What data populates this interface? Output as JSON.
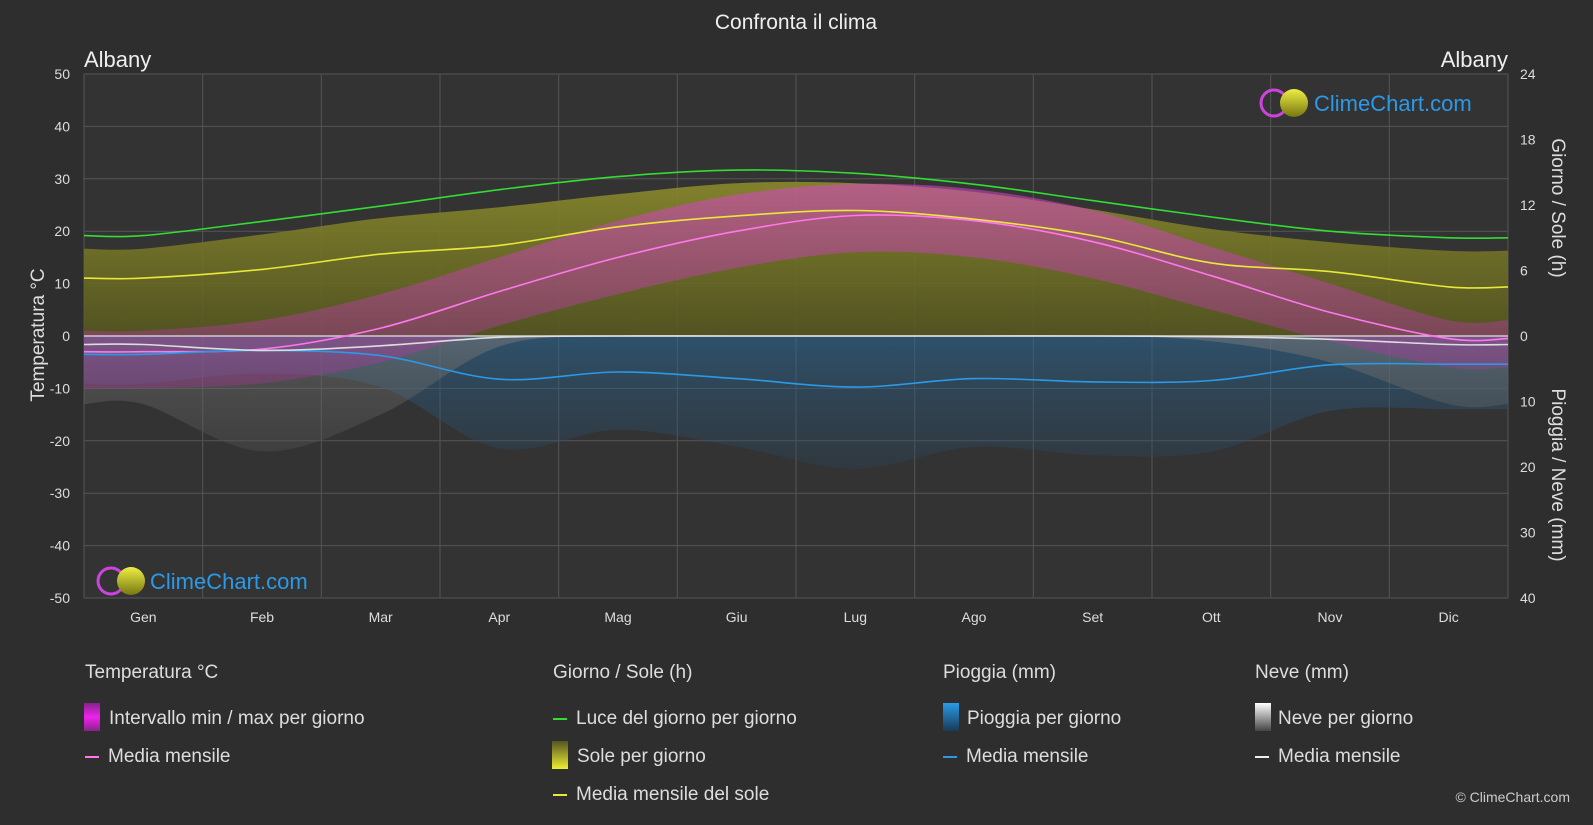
{
  "title": "Confronta il clima",
  "location_left": "Albany",
  "location_right": "Albany",
  "axes": {
    "left_label": "Temperatura °C",
    "right_top_label": "Giorno / Sole (h)",
    "right_bottom_label": "Pioggia / Neve (mm)",
    "left_ticks": [
      "50",
      "40",
      "30",
      "20",
      "10",
      "0",
      "-10",
      "-20",
      "-30",
      "-40",
      "-50"
    ],
    "right_top_ticks": [
      "24",
      "18",
      "12",
      "6",
      "0"
    ],
    "right_bottom_ticks": [
      "10",
      "20",
      "30",
      "40"
    ]
  },
  "watermark": "ClimeChart.com",
  "copyright": "© ClimeChart.com",
  "colors": {
    "background": "#2e2e2e",
    "daylight": "#33dd33",
    "sunshine_line": "#e8e83a",
    "sunshine_fill": "#9a9a2a",
    "temp_range": "#cc33cc",
    "temp_mean": "#ff77ee",
    "rain": "#2a9ae8",
    "snow": "#dddddd",
    "brand": "#2a9ae8"
  },
  "legend": {
    "temp": {
      "header": "Temperatura °C",
      "items": [
        "Intervallo min / max per giorno",
        "Media mensile"
      ]
    },
    "sun": {
      "header": "Giorno / Sole (h)",
      "items": [
        "Luce del giorno per giorno",
        "Sole per giorno",
        "Media mensile del sole"
      ]
    },
    "rain": {
      "header": "Pioggia (mm)",
      "items": [
        "Pioggia per giorno",
        "Media mensile"
      ]
    },
    "snow": {
      "header": "Neve (mm)",
      "items": [
        "Neve per giorno",
        "Media mensile"
      ]
    }
  },
  "chart_data": {
    "type": "line",
    "title": "Confronta il clima",
    "categories": [
      "Gen",
      "Feb",
      "Mar",
      "Apr",
      "Mag",
      "Giu",
      "Lug",
      "Ago",
      "Set",
      "Ott",
      "Nov",
      "Dic"
    ],
    "ylim_temperature": [
      -50,
      50
    ],
    "ylim_hours": [
      0,
      24
    ],
    "ylim_precip_mm": [
      0,
      40
    ],
    "grid": true,
    "series": [
      {
        "name": "Luce del giorno per giorno",
        "unit": "h",
        "values": [
          9.2,
          10.5,
          11.9,
          13.4,
          14.6,
          15.2,
          14.9,
          13.9,
          12.4,
          10.9,
          9.6,
          9.0
        ]
      },
      {
        "name": "Media mensile del sole",
        "unit": "h",
        "values": [
          5.3,
          6.1,
          7.5,
          8.3,
          10.0,
          11.0,
          11.5,
          10.7,
          9.2,
          6.7,
          5.9,
          4.5
        ]
      },
      {
        "name": "Sole per giorno",
        "unit": "h",
        "values": [
          8.0,
          9.3,
          10.8,
          11.8,
          13.0,
          14.0,
          14.0,
          13.2,
          11.6,
          9.8,
          8.6,
          7.8
        ]
      },
      {
        "name": "Temperatura media mensile",
        "unit": "°C",
        "values": [
          -3.0,
          -2.5,
          1.5,
          8.5,
          15.0,
          20.0,
          23.0,
          22.0,
          18.0,
          11.5,
          4.5,
          -0.5
        ]
      },
      {
        "name": "Temperatura massima media",
        "unit": "°C",
        "values": [
          1,
          3,
          8,
          15,
          22,
          27,
          29,
          28,
          24,
          17,
          10,
          3
        ]
      },
      {
        "name": "Temperatura minima media",
        "unit": "°C",
        "values": [
          -10,
          -9,
          -5,
          2,
          8,
          13,
          16,
          15,
          11,
          5,
          -1,
          -6
        ]
      },
      {
        "name": "Pioggia media mensile",
        "unit": "mm",
        "values": [
          2.8,
          2.2,
          3.0,
          6.6,
          5.5,
          6.5,
          7.8,
          6.5,
          7.0,
          6.8,
          4.4,
          4.3
        ]
      },
      {
        "name": "Neve media mensile",
        "unit": "mm",
        "values": [
          1.3,
          2.2,
          1.5,
          0.2,
          0,
          0,
          0,
          0,
          0,
          0.1,
          0.5,
          1.3
        ]
      }
    ]
  }
}
